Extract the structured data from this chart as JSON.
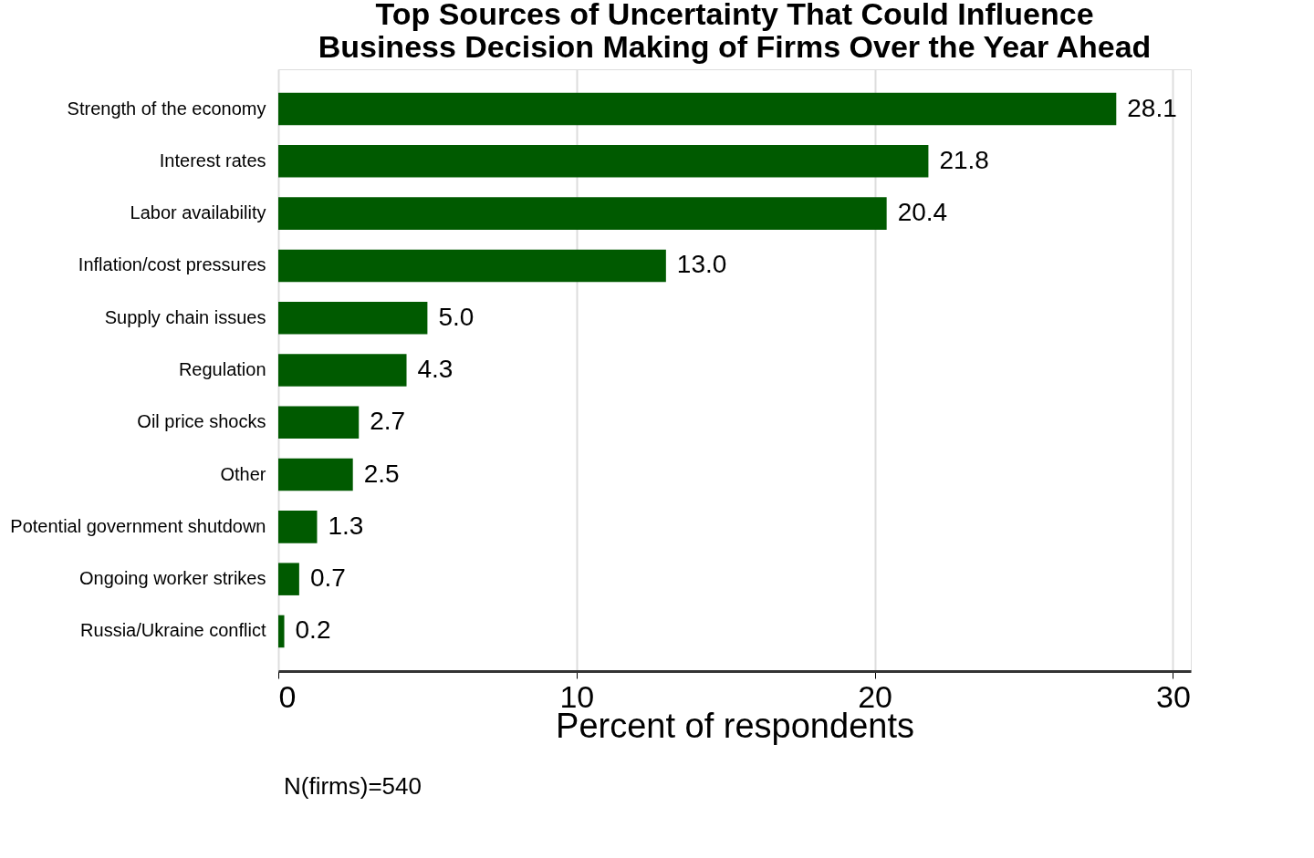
{
  "chart_data": {
    "type": "bar",
    "orientation": "horizontal",
    "title": [
      "Top Sources of Uncertainty That Could Influence",
      "Business Decision Making of Firms Over the Year Ahead"
    ],
    "categories": [
      "Strength of the economy",
      "Interest rates",
      "Labor availability",
      "Inflation/cost pressures",
      "Supply chain issues",
      "Regulation",
      "Oil price shocks",
      "Other",
      "Potential government shutdown",
      "Ongoing worker strikes",
      "Russia/Ukraine conflict"
    ],
    "values": [
      28.1,
      21.8,
      20.4,
      13.0,
      5.0,
      4.3,
      2.7,
      2.5,
      1.3,
      0.7,
      0.2
    ],
    "value_labels": [
      "28.1",
      "21.8",
      "20.4",
      "13.0",
      "5.0",
      "4.3",
      "2.7",
      "2.5",
      "1.3",
      "0.7",
      "0.2"
    ],
    "color": "#005a00",
    "xlim": [
      0,
      30.6
    ],
    "xticks": [
      0,
      10,
      20,
      30
    ],
    "xlabel": "Percent of respondents",
    "grid": "x",
    "annotations": [
      "N(firms)=540"
    ]
  }
}
